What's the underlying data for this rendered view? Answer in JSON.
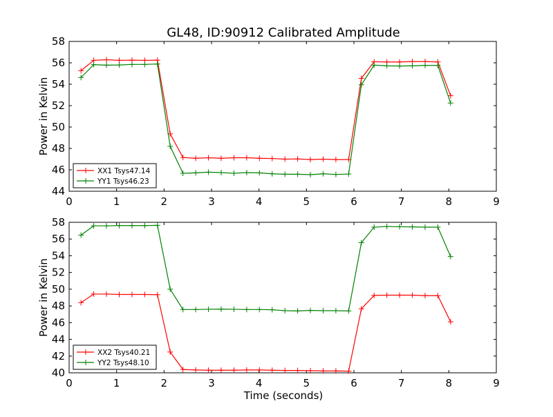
{
  "chart_data": [
    {
      "type": "line",
      "title": "GL48, ID:90912 Calibrated Amplitude",
      "xlabel": "",
      "ylabel": "Power in Kelvin",
      "xlim": [
        0,
        9
      ],
      "ylim": [
        44,
        58
      ],
      "xticks": [
        "0",
        "1",
        "2",
        "3",
        "4",
        "5",
        "6",
        "7",
        "8",
        "9"
      ],
      "yticks": [
        "44",
        "46",
        "48",
        "50",
        "52",
        "54",
        "56",
        "58"
      ],
      "legend": "lower-left",
      "series": [
        {
          "name": "XX1 Tsys47.14",
          "color": "#ff0000",
          "values": [
            55.27,
            56.23,
            56.29,
            56.23,
            56.25,
            56.23,
            56.25,
            49.36,
            47.15,
            47.08,
            47.13,
            47.08,
            47.13,
            47.13,
            47.08,
            47.06,
            47.0,
            47.02,
            46.96,
            47.0,
            46.96,
            46.96,
            54.55,
            56.1,
            56.08,
            56.08,
            56.12,
            56.12,
            56.08,
            52.93
          ]
        },
        {
          "name": "YY1 Tsys46.23",
          "color": "#008000",
          "values": [
            54.63,
            55.83,
            55.78,
            55.8,
            55.85,
            55.85,
            55.89,
            48.19,
            45.68,
            45.72,
            45.78,
            45.74,
            45.68,
            45.74,
            45.72,
            45.63,
            45.59,
            45.59,
            45.55,
            45.63,
            45.57,
            45.61,
            53.95,
            55.78,
            55.72,
            55.7,
            55.72,
            55.76,
            55.76,
            52.24
          ]
        }
      ]
    },
    {
      "type": "line",
      "title": "",
      "xlabel": "Time (seconds)",
      "ylabel": "Power in Kelvin",
      "xlim": [
        0,
        9
      ],
      "ylim": [
        40,
        58
      ],
      "xticks": [
        "0",
        "1",
        "2",
        "3",
        "4",
        "5",
        "6",
        "7",
        "8",
        "9"
      ],
      "yticks": [
        "40",
        "42",
        "44",
        "46",
        "48",
        "50",
        "52",
        "54",
        "56",
        "58"
      ],
      "legend": "lower-left",
      "series": [
        {
          "name": "XX2 Tsys40.21",
          "color": "#ff0000",
          "values": [
            48.39,
            49.42,
            49.42,
            49.37,
            49.37,
            49.37,
            49.34,
            42.49,
            40.39,
            40.34,
            40.31,
            40.31,
            40.31,
            40.34,
            40.34,
            40.31,
            40.28,
            40.28,
            40.26,
            40.23,
            40.23,
            40.2,
            47.65,
            49.26,
            49.29,
            49.29,
            49.29,
            49.23,
            49.23,
            46.1
          ]
        },
        {
          "name": "YY2 Tsys48.10",
          "color": "#008000",
          "values": [
            56.46,
            57.58,
            57.58,
            57.61,
            57.61,
            57.61,
            57.64,
            50.0,
            47.57,
            47.57,
            47.6,
            47.62,
            47.6,
            47.57,
            47.57,
            47.54,
            47.43,
            47.4,
            47.46,
            47.43,
            47.43,
            47.4,
            55.56,
            57.42,
            57.5,
            57.47,
            57.45,
            57.42,
            57.42,
            53.9
          ]
        }
      ]
    }
  ],
  "time_x": {
    "start": 0.25,
    "step": 0.2685
  }
}
